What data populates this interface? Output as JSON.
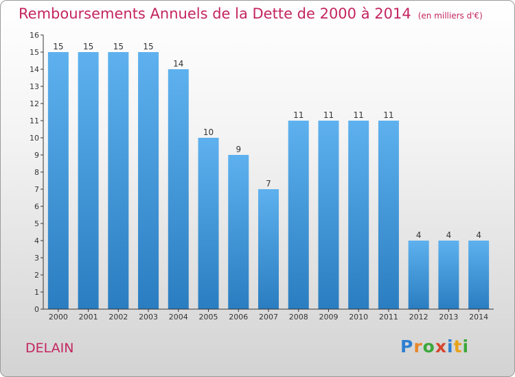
{
  "chart_data": {
    "type": "bar",
    "title": "Remboursements Annuels de la Dette de 2000 à 2014",
    "subtitle": "(en milliers d'€)",
    "categories": [
      "2000",
      "2001",
      "2002",
      "2003",
      "2004",
      "2005",
      "2006",
      "2007",
      "2008",
      "2009",
      "2010",
      "2011",
      "2012",
      "2013",
      "2014"
    ],
    "values": [
      15,
      15,
      15,
      15,
      14,
      10,
      9,
      7,
      11,
      11,
      11,
      11,
      4,
      4,
      4
    ],
    "xlabel": "",
    "ylabel": "",
    "ylim": [
      0,
      16
    ],
    "yticks": [
      0,
      1,
      2,
      3,
      4,
      5,
      6,
      7,
      8,
      9,
      10,
      11,
      12,
      13,
      14,
      15,
      16
    ],
    "grid": false,
    "legend": "none",
    "colors": {
      "bar_top": "#5eb1ee",
      "bar_bottom": "#2a7dc0",
      "title": "#c4245f",
      "axis": "#333333"
    }
  },
  "footer": {
    "place": "DELAIN",
    "logo": "Proxiti"
  }
}
